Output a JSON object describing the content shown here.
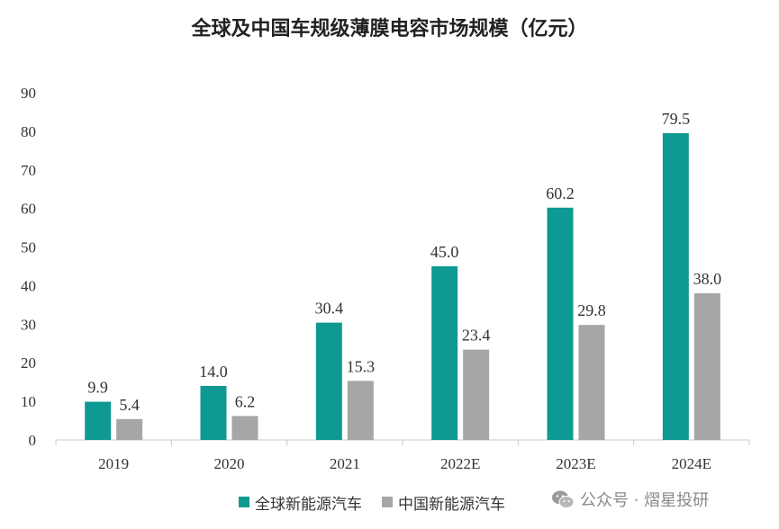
{
  "chart_data": {
    "type": "bar",
    "title": "全球及中国车规级薄膜电容市场规模（亿元）",
    "xlabel": "",
    "ylabel": "",
    "categories": [
      "2019",
      "2020",
      "2021",
      "2022E",
      "2023E",
      "2024E"
    ],
    "series": [
      {
        "name": "全球新能源汽车",
        "color": "#0e9a92",
        "values": [
          9.9,
          14.0,
          30.4,
          45.0,
          60.2,
          79.5
        ]
      },
      {
        "name": "中国新能源汽车",
        "color": "#a6a6a6",
        "values": [
          5.4,
          6.2,
          15.3,
          23.4,
          29.8,
          38.0
        ]
      }
    ],
    "ylim": [
      0,
      90
    ],
    "yticks": [
      0,
      10,
      20,
      30,
      40,
      50,
      60,
      70,
      80,
      90
    ],
    "grid": false,
    "legend_position": "bottom"
  },
  "watermark": {
    "text": "公众号 · 熠星投研",
    "icon": "wechat-icon"
  }
}
